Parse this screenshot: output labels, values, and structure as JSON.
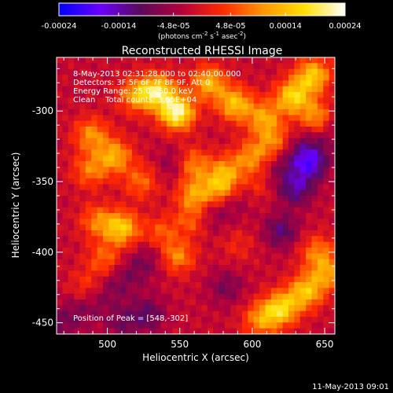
{
  "footer": {
    "timestamp": "11-May-2013 09:01"
  },
  "colorbar": {
    "ticks": [
      "-0.00024",
      "-0.00014",
      "-4.8e-05",
      "4.8e-05",
      "0.00014",
      "0.00024"
    ],
    "unit_main": "(photons cm",
    "unit_sup1": "-2",
    "unit_mid": " s",
    "unit_sup2": "-1",
    "unit_mid2": " asec",
    "unit_sup3": "-2",
    "unit_end": ")"
  },
  "colors": {
    "background": "#000000",
    "text": "#ffffff",
    "colormap": [
      "#0000ff",
      "#6a00ff",
      "#5a0a5a",
      "#b4003c",
      "#ff2a00",
      "#ff9600",
      "#ffe000",
      "#ffffff"
    ]
  },
  "chart_data": {
    "type": "heatmap",
    "title": "Reconstructed RHESSI Image",
    "xlabel": "Heliocentric X (arcsec)",
    "ylabel": "Heliocentric Y (arcsec)",
    "xlim": [
      465,
      657
    ],
    "ylim": [
      -458,
      -262
    ],
    "xticks": [
      500,
      550,
      600,
      650
    ],
    "yticks": [
      -300,
      -350,
      -400,
      -450
    ],
    "colorbar_range": [
      -0.00024,
      0.00024
    ],
    "info_lines": [
      "8-May-2013 02:31:28.000 to 02:40:00.000",
      "Detectors: 3F 5F 6F 7F 8F 9F, Att 0",
      "Energy Range: 25.0 - 50.0 keV",
      "Clean    Total counts: 3.65E+04"
    ],
    "peak_text": "Position of Peak = [548,-302]",
    "peak_position": [
      548,
      -302
    ],
    "blobs": [
      {
        "x": 548,
        "y": -301,
        "peak": 0.00024
      },
      {
        "x": 535,
        "y": -286,
        "peak": 0.00019
      },
      {
        "x": 570,
        "y": -280,
        "peak": 0.00015
      },
      {
        "x": 520,
        "y": -289,
        "peak": 0.00013
      },
      {
        "x": 588,
        "y": -295,
        "peak": 0.00016
      },
      {
        "x": 608,
        "y": -305,
        "peak": 0.00013
      },
      {
        "x": 628,
        "y": -290,
        "peak": 0.00018
      },
      {
        "x": 642,
        "y": -275,
        "peak": 0.00017
      },
      {
        "x": 645,
        "y": -305,
        "peak": 0.00014
      },
      {
        "x": 505,
        "y": -332,
        "peak": 0.00014
      },
      {
        "x": 489,
        "y": -317,
        "peak": 0.00012
      },
      {
        "x": 488,
        "y": -342,
        "peak": 0.0001
      },
      {
        "x": 523,
        "y": -350,
        "peak": 9e-05
      },
      {
        "x": 558,
        "y": -338,
        "peak": 0.00013
      },
      {
        "x": 582,
        "y": -343,
        "peak": 0.00011
      },
      {
        "x": 600,
        "y": -333,
        "peak": 0.00012
      },
      {
        "x": 615,
        "y": -322,
        "peak": 0.00011
      },
      {
        "x": 560,
        "y": -360,
        "peak": 0.00013
      },
      {
        "x": 578,
        "y": -355,
        "peak": 0.00014
      },
      {
        "x": 603,
        "y": -352,
        "peak": 9e-05
      },
      {
        "x": 510,
        "y": -383,
        "peak": 0.00017
      },
      {
        "x": 493,
        "y": -378,
        "peak": 0.0001
      },
      {
        "x": 538,
        "y": -387,
        "peak": 0.0001
      },
      {
        "x": 548,
        "y": -402,
        "peak": 0.00014
      },
      {
        "x": 558,
        "y": -380,
        "peak": 0.00012
      },
      {
        "x": 498,
        "y": -405,
        "peak": 9e-05
      },
      {
        "x": 486,
        "y": -425,
        "peak": 7e-05
      },
      {
        "x": 590,
        "y": -395,
        "peak": 4e-05
      },
      {
        "x": 645,
        "y": -400,
        "peak": 0.0001
      },
      {
        "x": 637,
        "y": -428,
        "peak": 0.00016
      },
      {
        "x": 620,
        "y": -440,
        "peak": 0.00018
      },
      {
        "x": 606,
        "y": -448,
        "peak": 0.00012
      },
      {
        "x": 652,
        "y": -415,
        "peak": 0.00012
      },
      {
        "x": 528,
        "y": -444,
        "peak": -8e-05
      },
      {
        "x": 510,
        "y": -450,
        "peak": -6e-05
      },
      {
        "x": 640,
        "y": -337,
        "peak": -0.00014
      },
      {
        "x": 630,
        "y": -355,
        "peak": -0.00011
      },
      {
        "x": 620,
        "y": -385,
        "peak": -9e-05
      },
      {
        "x": 548,
        "y": -338,
        "peak": -7e-05
      },
      {
        "x": 582,
        "y": -425,
        "peak": -6e-05
      }
    ]
  }
}
